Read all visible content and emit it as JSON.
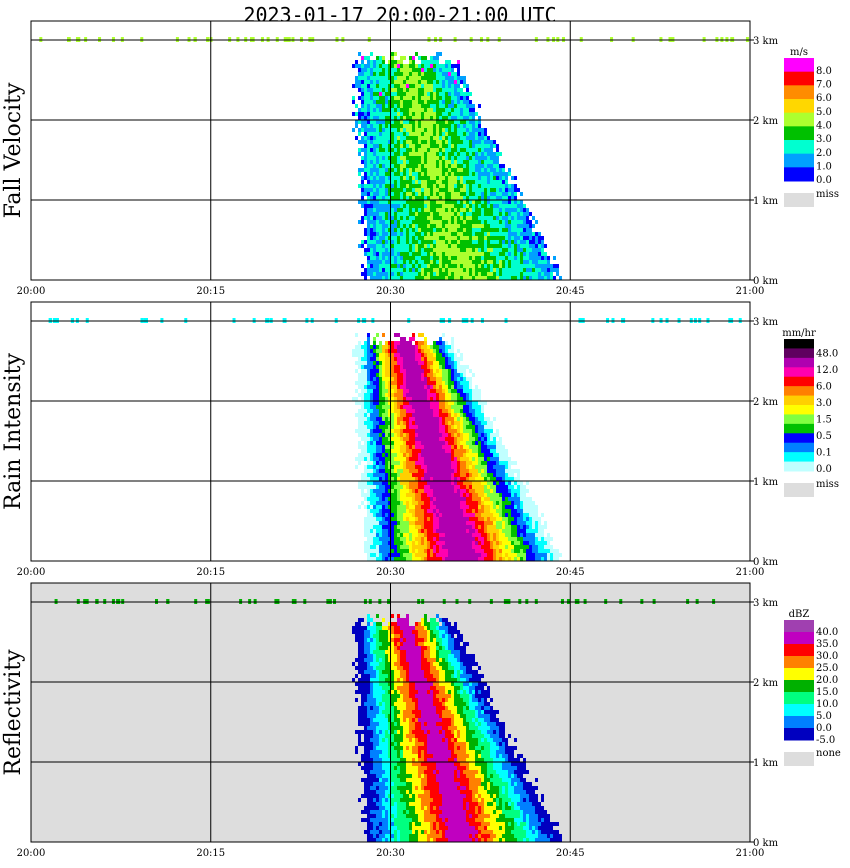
{
  "title": "2023-01-17  20:00-21:00 UTC",
  "x_ticks": [
    "20:00",
    "20:15",
    "20:30",
    "20:45",
    "21:00"
  ],
  "y_ticks": [
    "0 km",
    "1 km",
    "2 km",
    "3 km"
  ],
  "chart_data": [
    {
      "type": "heatmap",
      "ylabel": "Fall Velocity",
      "legend_unit": "m/s",
      "legend_labels": [
        "8.0",
        "7.0",
        "6.0",
        "5.0",
        "4.0",
        "3.0",
        "2.0",
        "1.0",
        "0.0"
      ],
      "legend_colors": [
        "#ff00ff",
        "#ff0000",
        "#ff8c00",
        "#ffd700",
        "#adff2f",
        "#00c000",
        "#00ffd0",
        "#00a0ff",
        "#0000ff"
      ],
      "legend_missing": "miss",
      "missing_color": "#dddddd",
      "background": "#ffffff",
      "xlim": [
        "20:00",
        "21:00"
      ],
      "ylim_km": [
        0,
        3
      ],
      "grid": true
    },
    {
      "type": "heatmap",
      "ylabel": "Rain Intensity",
      "legend_unit": "mm/hr",
      "legend_labels": [
        "48.0",
        "12.0",
        "6.0",
        "3.0",
        "1.5",
        "0.5",
        "0.1",
        "0.0"
      ],
      "legend_colors": [
        "#000000",
        "#600060",
        "#b000b0",
        "#ff00b0",
        "#ff0000",
        "#ff8000",
        "#ffd000",
        "#ffff00",
        "#80ff40",
        "#00c000",
        "#0000ff",
        "#0080ff",
        "#00ffff",
        "#c0ffff"
      ],
      "legend_missing": "miss",
      "missing_color": "#dddddd",
      "background": "#ffffff",
      "xlim": [
        "20:00",
        "21:00"
      ],
      "ylim_km": [
        0,
        3
      ],
      "grid": true
    },
    {
      "type": "heatmap",
      "ylabel": "Reflectivity",
      "legend_unit": "dBZ",
      "legend_labels": [
        "40.0",
        "35.0",
        "30.0",
        "25.0",
        "20.0",
        "15.0",
        "10.0",
        "5.0",
        "0.0",
        "-5.0"
      ],
      "legend_colors": [
        "#a040b0",
        "#c000c0",
        "#ff0000",
        "#ff8000",
        "#ffff00",
        "#00b000",
        "#00ff80",
        "#00ffff",
        "#0080ff",
        "#0000c0"
      ],
      "legend_missing": "none",
      "missing_color": "#dddddd",
      "background": "#dddddd",
      "xlim": [
        "20:00",
        "21:00"
      ],
      "ylim_km": [
        0,
        3
      ],
      "grid": true
    }
  ]
}
